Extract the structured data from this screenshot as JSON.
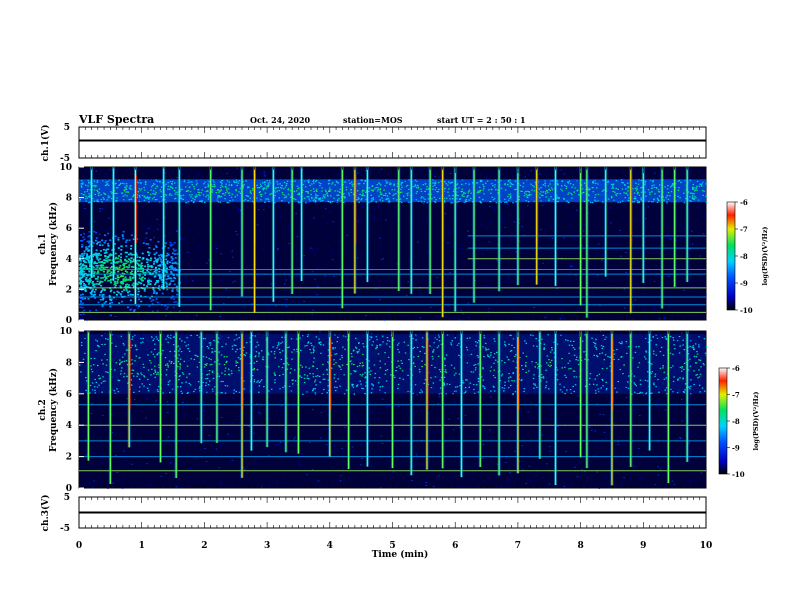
{
  "header": {
    "title": "VLF Spectra",
    "date": "Oct. 24, 2020",
    "station": "station=MOS",
    "start_ut": "start  UT =   2  : 50 : 1"
  },
  "chart_data": [
    {
      "type": "line",
      "panel": "ch1-waveform",
      "ylabel": "ch.1(V)",
      "ylim": [
        -5,
        5
      ],
      "yticks": [
        "5",
        "-5"
      ],
      "xlim": [
        0,
        10
      ],
      "series": [
        {
          "x": [
            0,
            10
          ],
          "values": [
            0,
            0
          ]
        }
      ]
    },
    {
      "type": "heatmap",
      "panel": "ch1-spectrogram",
      "ylabel": "ch.1",
      "ylabel2": "Frequency  (kHz)",
      "ylim": [
        0,
        10
      ],
      "yticks": [
        "0",
        "2",
        "4",
        "6",
        "8",
        "10"
      ],
      "xlim": [
        0,
        10
      ],
      "colorbar": {
        "label": "log(PSD)(V²/Hz)",
        "range": [
          -10,
          -6
        ],
        "ticks": [
          "-6",
          "-7",
          "-8",
          "-9",
          "-10"
        ]
      },
      "band_khz": [
        7.7,
        9.2
      ],
      "hiss_region": {
        "time_min": [
          0,
          1.6
        ],
        "freq_khz": [
          1,
          5.5
        ]
      },
      "spike_times_min": [
        0.2,
        0.55,
        0.9,
        1.35,
        1.6,
        2.1,
        2.6,
        2.8,
        3.1,
        3.4,
        3.55,
        4.2,
        4.4,
        4.6,
        5.1,
        5.3,
        5.6,
        5.8,
        6.0,
        6.3,
        6.7,
        7.0,
        7.3,
        7.6,
        8.0,
        8.1,
        8.4,
        8.8,
        9.0,
        9.3,
        9.5,
        9.7
      ],
      "tone_lines_khz": [
        0.5,
        1.0,
        1.5,
        2.1,
        3.0,
        3.3,
        4.0,
        4.7,
        5.5
      ]
    },
    {
      "type": "heatmap",
      "panel": "ch2-spectrogram",
      "ylabel": "ch.2",
      "ylabel2": "Frequency  (kHz)",
      "ylim": [
        0,
        10
      ],
      "yticks": [
        "0",
        "2",
        "4",
        "6",
        "8",
        "10"
      ],
      "xlim": [
        0,
        10
      ],
      "colorbar": {
        "label": "log(PSD)(V²/Hz)",
        "range": [
          -10,
          -6
        ],
        "ticks": [
          "-6",
          "-7",
          "-8",
          "-9",
          "-10"
        ]
      },
      "band_khz": [
        6.0,
        9.8
      ],
      "spike_times_min": [
        0.15,
        0.5,
        0.8,
        1.3,
        1.55,
        1.95,
        2.2,
        2.6,
        2.75,
        3.0,
        3.3,
        3.5,
        4.0,
        4.3,
        4.6,
        5.0,
        5.3,
        5.55,
        5.8,
        6.1,
        6.4,
        6.7,
        7.0,
        7.35,
        7.6,
        8.0,
        8.1,
        8.5,
        8.8,
        9.1,
        9.4,
        9.7
      ],
      "tone_lines_khz": [
        1.1,
        2.0,
        3.0,
        4.0,
        5.3
      ]
    },
    {
      "type": "line",
      "panel": "ch3-waveform",
      "ylabel": "ch.3(V)",
      "ylim": [
        -5,
        5
      ],
      "yticks": [
        "5",
        "-5"
      ],
      "xlim": [
        0,
        10
      ],
      "xticks": [
        "0",
        "1",
        "2",
        "3",
        "4",
        "5",
        "6",
        "7",
        "8",
        "9",
        "10"
      ],
      "xlabel": "Time  (min)",
      "series": [
        {
          "x": [
            0,
            10
          ],
          "values": [
            0,
            0
          ]
        }
      ]
    }
  ]
}
